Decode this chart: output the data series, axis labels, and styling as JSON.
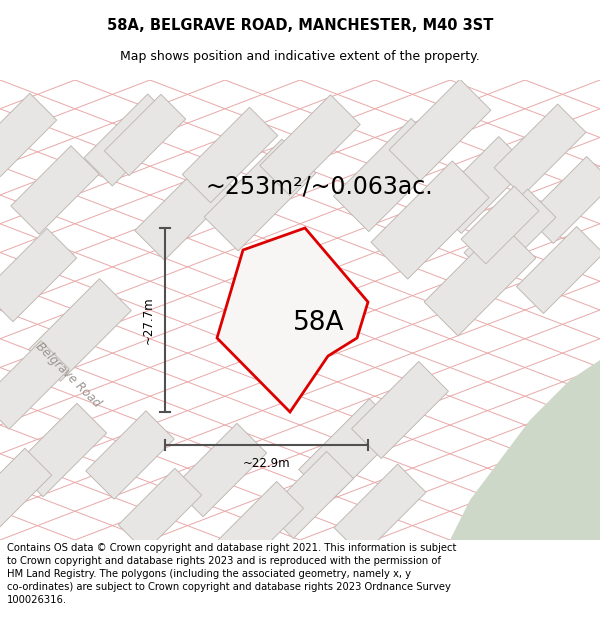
{
  "title": "58A, BELGRAVE ROAD, MANCHESTER, M40 3ST",
  "subtitle": "Map shows position and indicative extent of the property.",
  "area_text": "~253m²/~0.063ac.",
  "label_58A": "58A",
  "dim_height": "~27.7m",
  "dim_width": "~22.9m",
  "road_label": "Belgrave Road",
  "footer": "Contains OS data © Crown copyright and database right 2021. This information is subject to Crown copyright and database rights 2023 and is reproduced with the permission of HM Land Registry. The polygons (including the associated geometry, namely x, y co-ordinates) are subject to Crown copyright and database rights 2023 Ordnance Survey 100026316.",
  "bg_color": "#f2f0ee",
  "block_fill": "#e8e6e4",
  "block_edge": "#c0bab4",
  "road_line_color": "#e8a8a8",
  "road_line_color2": "#c8c0bc",
  "green_fill": "#cdd8c8",
  "property_stroke": "#dd0000",
  "property_fill": "#f8f6f4",
  "dim_line_color": "#505050",
  "title_fontsize": 10.5,
  "subtitle_fontsize": 9,
  "area_fontsize": 17,
  "label_fontsize": 19,
  "dim_fontsize": 8.5,
  "road_fontsize": 8.5,
  "footer_fontsize": 7.2
}
